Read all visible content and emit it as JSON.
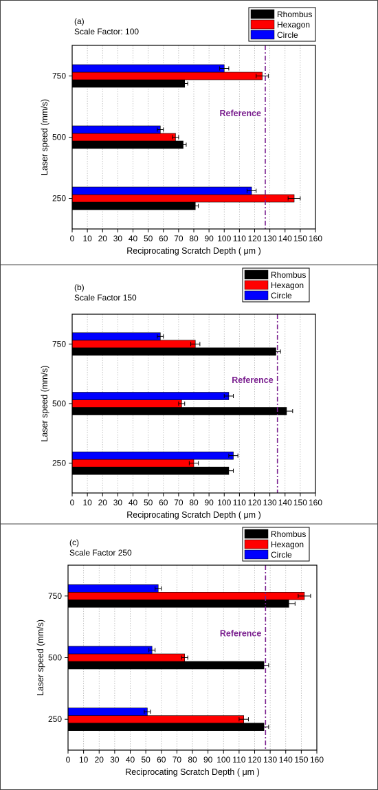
{
  "chart_data": [
    {
      "type": "bar",
      "orientation": "horizontal",
      "panel_label": "(a)",
      "subtitle": "Scale Factor: 100",
      "xlabel": "Reciprocating Scratch Depth ( μm )",
      "ylabel": "Laser speed (mm/s)",
      "xlim": [
        0,
        160
      ],
      "xticks": [
        "0",
        "10",
        "20",
        "30",
        "40",
        "50",
        "60",
        "70",
        "80",
        "90",
        "100",
        "110",
        "120",
        "130",
        "140",
        "150",
        "160"
      ],
      "categories": [
        "250",
        "500",
        "750"
      ],
      "series": [
        {
          "name": "Rhombus",
          "color": "#000000",
          "values": [
            81,
            73,
            74
          ],
          "errors": [
            2,
            2,
            2
          ]
        },
        {
          "name": "Hexagon",
          "color": "#ff0000",
          "values": [
            146,
            68,
            125
          ],
          "errors": [
            4,
            2,
            4
          ]
        },
        {
          "name": "Circle",
          "color": "#0000ff",
          "values": [
            118,
            58,
            100
          ],
          "errors": [
            3,
            2,
            3
          ]
        }
      ],
      "reference": {
        "label": "Reference",
        "value": 127,
        "color": "#7a1f8f"
      },
      "legend": "top-right",
      "grid": "vertical-dotted"
    },
    {
      "type": "bar",
      "orientation": "horizontal",
      "panel_label": "(b)",
      "subtitle": "Scale Factor 150",
      "xlabel": "Reciprocating Scratch Depth ( μm )",
      "ylabel": "Laser speed (mm/s)",
      "xlim": [
        0,
        160
      ],
      "xticks": [
        "0",
        "10",
        "20",
        "30",
        "40",
        "50",
        "60",
        "70",
        "80",
        "90",
        "100",
        "110",
        "120",
        "130",
        "140",
        "150",
        "160"
      ],
      "categories": [
        "250",
        "500",
        "750"
      ],
      "series": [
        {
          "name": "Rhombus",
          "color": "#000000",
          "values": [
            103,
            141,
            134
          ],
          "errors": [
            3,
            4,
            3
          ]
        },
        {
          "name": "Hexagon",
          "color": "#ff0000",
          "values": [
            80,
            72,
            81
          ],
          "errors": [
            3,
            2,
            3
          ]
        },
        {
          "name": "Circle",
          "color": "#0000ff",
          "values": [
            106,
            103,
            58
          ],
          "errors": [
            3,
            3,
            2
          ]
        }
      ],
      "reference": {
        "label": "Reference",
        "value": 135,
        "color": "#7a1f8f"
      },
      "legend": "top-right",
      "grid": "vertical-dotted"
    },
    {
      "type": "bar",
      "orientation": "horizontal",
      "panel_label": "(c)",
      "subtitle": "Scale Factor 250",
      "xlabel": "Reciprocating Scratch Depth ( μm )",
      "ylabel": "Laser speed (mm/s)",
      "xlim": [
        0,
        160
      ],
      "xticks": [
        "0",
        "10",
        "20",
        "30",
        "40",
        "50",
        "60",
        "70",
        "80",
        "90",
        "100",
        "110",
        "120",
        "130",
        "140",
        "150",
        "160"
      ],
      "categories": [
        "250",
        "500",
        "750"
      ],
      "series": [
        {
          "name": "Rhombus",
          "color": "#000000",
          "values": [
            126,
            126,
            142
          ],
          "errors": [
            3,
            3,
            4
          ]
        },
        {
          "name": "Hexagon",
          "color": "#ff0000",
          "values": [
            113,
            75,
            152
          ],
          "errors": [
            3,
            2,
            4
          ]
        },
        {
          "name": "Circle",
          "color": "#0000ff",
          "values": [
            51,
            54,
            58
          ],
          "errors": [
            2,
            2,
            2
          ]
        }
      ],
      "reference": {
        "label": "Reference",
        "value": 127,
        "color": "#7a1f8f"
      },
      "legend": "top-right",
      "grid": "vertical-dotted"
    }
  ]
}
